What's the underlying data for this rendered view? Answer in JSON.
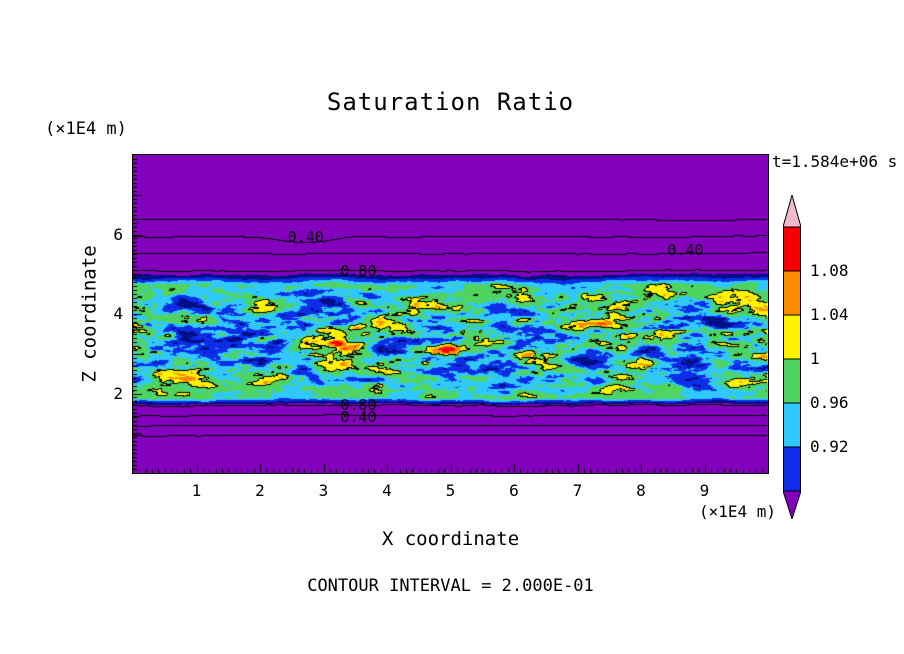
{
  "title": "Saturation Ratio",
  "time_label": "t=1.584e+06 s",
  "footer": "CONTOUR INTERVAL = 2.000E-01",
  "axes": {
    "x": {
      "label": "X coordinate",
      "unit": "(×1E4 m)",
      "ticks": [
        1,
        2,
        3,
        4,
        5,
        6,
        7,
        8,
        9
      ]
    },
    "z": {
      "label": "Z coordinate",
      "unit": "(×1E4 m)",
      "ticks": [
        2,
        4,
        6
      ]
    }
  },
  "colorbar": {
    "over_color": "#f2b8ce",
    "under_color": "#8300bc",
    "boxes": [
      "#f80000",
      "#ff8c00",
      "#fff300",
      "#4fd45f",
      "#2fc8ff",
      "#0d2de8"
    ],
    "boundary_labels": [
      "1.08",
      "1.04",
      "1",
      "0.96",
      "0.92"
    ]
  },
  "contour_labels": [
    {
      "text": "0.40",
      "x": 2.72,
      "z": 5.93
    },
    {
      "text": "0.80",
      "x": 3.55,
      "z": 5.08
    },
    {
      "text": "0.40",
      "x": 8.7,
      "z": 5.6
    },
    {
      "text": "0.80",
      "x": 3.55,
      "z": 1.72
    },
    {
      "text": "0.40",
      "x": 3.55,
      "z": 1.42
    }
  ],
  "chart_data": {
    "type": "heatmap",
    "title": "Saturation Ratio",
    "xlabel": "X coordinate (×1E4 m)",
    "ylabel": "Z coordinate (×1E4 m)",
    "time": "t=1.584e+06 s",
    "x_range": [
      0,
      10
    ],
    "z_range": [
      0,
      8
    ],
    "x_ticks": [
      1,
      2,
      3,
      4,
      5,
      6,
      7,
      8,
      9
    ],
    "z_ticks": [
      2,
      4,
      6
    ],
    "contour_interval": 0.2,
    "contour_levels": [
      0.2,
      0.4,
      0.6,
      0.8,
      1.0
    ],
    "colorbar_levels": [
      "0.92",
      "0.96",
      "1",
      "1.04",
      "1.08"
    ],
    "field_colors": [
      {
        "lt": 0.84,
        "color": "#8300bc"
      },
      {
        "lt": 0.88,
        "color": "#000f86"
      },
      {
        "lt": 0.92,
        "color": "#0d2de8"
      },
      {
        "lt": 0.96,
        "color": "#2fc8ff"
      },
      {
        "lt": 1.0,
        "color": "#4fd45f"
      },
      {
        "lt": 1.04,
        "color": "#fff300"
      },
      {
        "lt": 1.08,
        "color": "#ff8c00"
      },
      {
        "lt": 1.12,
        "color": "#f80000"
      },
      {
        "lt": 99,
        "color": "#f2b8ce"
      }
    ],
    "mean_profile": [
      [
        0,
        0.13
      ],
      [
        0.85,
        0.13
      ],
      [
        1.9,
        0.96
      ],
      [
        4.75,
        0.96
      ],
      [
        6.55,
        0.12
      ],
      [
        8,
        0.12
      ]
    ],
    "render_model": {
      "band_center": 3.3,
      "band_halfwidth": 1.45,
      "wave_amp": 0.016,
      "turb_amps": [
        0.15,
        0.09,
        0.05
      ],
      "dip": {
        "x": 2.72,
        "z": 5.93,
        "amp": -0.09
      }
    },
    "description": "Turbulent saturated band (S≈0.85–1.12) between z≈2 and z≈5 (×1E4 m) with green/cyan background, yellow-orange-red streaks and dark blue patches; strongly sub-saturated purple region above and below the band crossed by wavy horizontal contour lines labeled 0.40 and 0.80."
  }
}
